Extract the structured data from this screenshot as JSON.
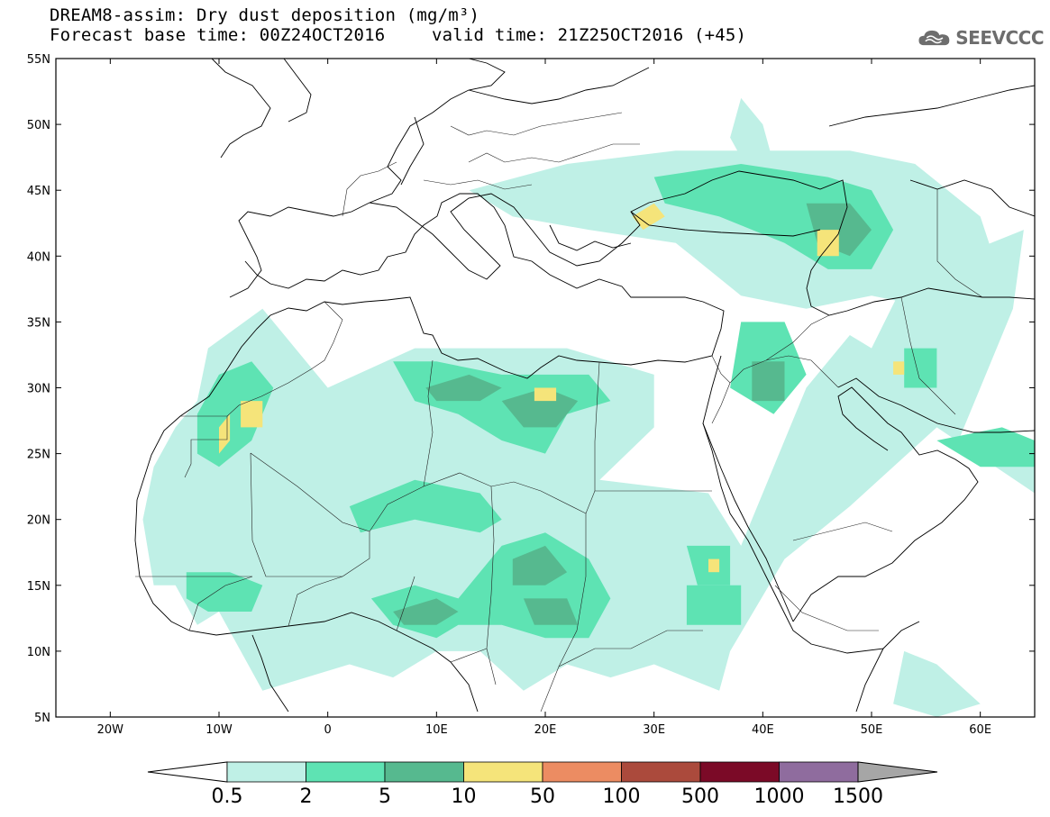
{
  "header": {
    "title_line1": "DREAM8-assim: Dry dust deposition (mg/m³)",
    "base_time": "Forecast base time: 00Z24OCT2016",
    "valid_time": "valid time: 21Z25OCT2016 (+45)",
    "logo_text": "SEEVCCC",
    "logo_icon": "cloud-icon"
  },
  "map": {
    "lon_range": [
      -25,
      65
    ],
    "lat_range": [
      5,
      55
    ],
    "lon_ticks": [
      {
        "value": -20,
        "label": "20W"
      },
      {
        "value": -10,
        "label": "10W"
      },
      {
        "value": 0,
        "label": "0"
      },
      {
        "value": 10,
        "label": "10E"
      },
      {
        "value": 20,
        "label": "20E"
      },
      {
        "value": 30,
        "label": "30E"
      },
      {
        "value": 40,
        "label": "40E"
      },
      {
        "value": 50,
        "label": "50E"
      },
      {
        "value": 60,
        "label": "60E"
      }
    ],
    "lat_ticks": [
      {
        "value": 55,
        "label": "55N"
      },
      {
        "value": 50,
        "label": "50N"
      },
      {
        "value": 45,
        "label": "45N"
      },
      {
        "value": 40,
        "label": "40N"
      },
      {
        "value": 35,
        "label": "35N"
      },
      {
        "value": 30,
        "label": "30N"
      },
      {
        "value": 25,
        "label": "25N"
      },
      {
        "value": 20,
        "label": "20N"
      },
      {
        "value": 15,
        "label": "15N"
      },
      {
        "value": 10,
        "label": "10N"
      },
      {
        "value": 5,
        "label": "5N"
      }
    ]
  },
  "colorbar": {
    "colors": [
      "#bff0e6",
      "#5ee3b3",
      "#56b98f",
      "#f5e47a",
      "#ec8c62",
      "#ab4a3c",
      "#7b0a27",
      "#8f6c9e"
    ],
    "below_color": "#ffffff",
    "above_color": "#a6a6a6",
    "labels": [
      "0.5",
      "2",
      "5",
      "10",
      "50",
      "100",
      "500",
      "1000",
      "1500"
    ]
  },
  "fields": {
    "levels": [
      [
        [
          [
            -11,
            33
          ],
          [
            -6,
            36
          ],
          [
            -3,
            33
          ],
          [
            0,
            30
          ],
          [
            8,
            33
          ],
          [
            14,
            33
          ],
          [
            22,
            33
          ],
          [
            30,
            31
          ],
          [
            30,
            27
          ],
          [
            25,
            23
          ],
          [
            35,
            22
          ],
          [
            38,
            18
          ],
          [
            44,
            30
          ],
          [
            48,
            34
          ],
          [
            50,
            33
          ],
          [
            53,
            38
          ],
          [
            56,
            38
          ],
          [
            58,
            40
          ],
          [
            64,
            42
          ],
          [
            63,
            36
          ],
          [
            60,
            30
          ],
          [
            58,
            26
          ],
          [
            65,
            26
          ],
          [
            65,
            22
          ],
          [
            56,
            27
          ],
          [
            52,
            24
          ],
          [
            48,
            21
          ],
          [
            42,
            17
          ],
          [
            37,
            10
          ],
          [
            36,
            7
          ],
          [
            30,
            9
          ],
          [
            26,
            8
          ],
          [
            22,
            9
          ],
          [
            18,
            7
          ],
          [
            14,
            10
          ],
          [
            10,
            10
          ],
          [
            6,
            8
          ],
          [
            2,
            9
          ],
          [
            -2,
            8
          ],
          [
            -6,
            7
          ],
          [
            -10,
            13
          ],
          [
            -12,
            12
          ],
          [
            -14,
            15
          ],
          [
            -16,
            15
          ],
          [
            -17,
            20
          ],
          [
            -16,
            24
          ],
          [
            -14,
            27
          ],
          [
            -12,
            29
          ]
        ],
        [
          [
            13,
            45
          ],
          [
            22,
            47
          ],
          [
            32,
            48
          ],
          [
            40,
            48
          ],
          [
            48,
            48
          ],
          [
            54,
            47
          ],
          [
            60,
            43
          ],
          [
            62,
            38
          ],
          [
            56,
            36
          ],
          [
            50,
            37
          ],
          [
            44,
            36
          ],
          [
            38,
            37
          ],
          [
            32,
            41
          ],
          [
            24,
            42
          ],
          [
            17,
            43
          ]
        ],
        [
          [
            38,
            52
          ],
          [
            40,
            50
          ],
          [
            41,
            47
          ],
          [
            39,
            46
          ],
          [
            37,
            49
          ]
        ],
        [
          [
            53,
            10
          ],
          [
            56,
            9
          ],
          [
            60,
            6
          ],
          [
            56,
            5
          ],
          [
            52,
            6
          ]
        ]
      ],
      [
        [
          [
            -10,
            31
          ],
          [
            -7,
            32
          ],
          [
            -5,
            30
          ],
          [
            -7,
            26
          ],
          [
            -10,
            24
          ],
          [
            -12,
            25
          ],
          [
            -12,
            28
          ]
        ],
        [
          [
            6,
            32
          ],
          [
            10,
            32
          ],
          [
            16,
            31
          ],
          [
            24,
            31
          ],
          [
            26,
            29
          ],
          [
            22,
            28
          ],
          [
            20,
            25
          ],
          [
            16,
            26
          ],
          [
            12,
            28
          ],
          [
            8,
            29
          ]
        ],
        [
          [
            2,
            21
          ],
          [
            8,
            23
          ],
          [
            14,
            22
          ],
          [
            16,
            20
          ],
          [
            14,
            19
          ],
          [
            8,
            20
          ],
          [
            3,
            19
          ]
        ],
        [
          [
            16,
            18
          ],
          [
            20,
            19
          ],
          [
            24,
            17
          ],
          [
            26,
            14
          ],
          [
            24,
            11
          ],
          [
            20,
            11
          ],
          [
            16,
            12
          ],
          [
            12,
            12
          ],
          [
            10,
            11
          ],
          [
            6,
            12
          ],
          [
            4,
            14
          ],
          [
            8,
            15
          ],
          [
            12,
            14
          ]
        ],
        [
          [
            -13,
            16
          ],
          [
            -9,
            16
          ],
          [
            -6,
            15
          ],
          [
            -7,
            13
          ],
          [
            -11,
            13
          ],
          [
            -13,
            14
          ]
        ],
        [
          [
            33,
            15
          ],
          [
            38,
            15
          ],
          [
            38,
            12
          ],
          [
            33,
            12
          ]
        ],
        [
          [
            33,
            18
          ],
          [
            37,
            18
          ],
          [
            37,
            15
          ],
          [
            34,
            15
          ]
        ],
        [
          [
            30,
            46
          ],
          [
            38,
            47
          ],
          [
            46,
            46
          ],
          [
            50,
            45
          ],
          [
            52,
            42
          ],
          [
            50,
            39
          ],
          [
            46,
            39
          ],
          [
            42,
            41
          ],
          [
            36,
            43
          ],
          [
            31,
            44
          ]
        ],
        [
          [
            38,
            35
          ],
          [
            42,
            35
          ],
          [
            44,
            31
          ],
          [
            41,
            28
          ],
          [
            37,
            30
          ]
        ],
        [
          [
            53,
            33
          ],
          [
            56,
            33
          ],
          [
            56,
            30
          ],
          [
            53,
            30
          ]
        ],
        [
          [
            56,
            26
          ],
          [
            62,
            27
          ],
          [
            65,
            26
          ],
          [
            65,
            24
          ],
          [
            60,
            24
          ]
        ]
      ],
      [
        [
          [
            9,
            30
          ],
          [
            13,
            31
          ],
          [
            16,
            30
          ],
          [
            14,
            29
          ],
          [
            10,
            29
          ]
        ],
        [
          [
            16,
            29
          ],
          [
            20,
            30
          ],
          [
            23,
            29
          ],
          [
            21,
            27
          ],
          [
            18,
            27
          ]
        ],
        [
          [
            17,
            17
          ],
          [
            20,
            18
          ],
          [
            22,
            16
          ],
          [
            20,
            15
          ],
          [
            17,
            15
          ]
        ],
        [
          [
            18,
            14
          ],
          [
            22,
            14
          ],
          [
            23,
            12
          ],
          [
            19,
            12
          ]
        ],
        [
          [
            6,
            13
          ],
          [
            10,
            14
          ],
          [
            12,
            13
          ],
          [
            10,
            12
          ],
          [
            7,
            12
          ]
        ],
        [
          [
            44,
            44
          ],
          [
            48,
            44
          ],
          [
            50,
            42
          ],
          [
            48,
            40
          ],
          [
            45,
            41
          ]
        ],
        [
          [
            39,
            32
          ],
          [
            42,
            32
          ],
          [
            42,
            29
          ],
          [
            39,
            29
          ]
        ]
      ],
      [
        [
          [
            -10,
            27
          ],
          [
            -9,
            28
          ],
          [
            -9,
            26
          ],
          [
            -10,
            25
          ]
        ],
        [
          [
            -8,
            29
          ],
          [
            -6,
            29
          ],
          [
            -6,
            27
          ],
          [
            -8,
            27
          ]
        ],
        [
          [
            19,
            30
          ],
          [
            21,
            30
          ],
          [
            21,
            29
          ],
          [
            19,
            29
          ]
        ],
        [
          [
            28,
            43
          ],
          [
            30,
            44
          ],
          [
            31,
            43
          ],
          [
            29,
            42
          ]
        ],
        [
          [
            45,
            42
          ],
          [
            47,
            42
          ],
          [
            47,
            40
          ],
          [
            45,
            40
          ]
        ],
        [
          [
            35,
            17
          ],
          [
            36,
            17
          ],
          [
            36,
            16
          ],
          [
            35,
            16
          ]
        ],
        [
          [
            52,
            32
          ],
          [
            53,
            32
          ],
          [
            53,
            31
          ],
          [
            52,
            31
          ]
        ]
      ]
    ]
  }
}
